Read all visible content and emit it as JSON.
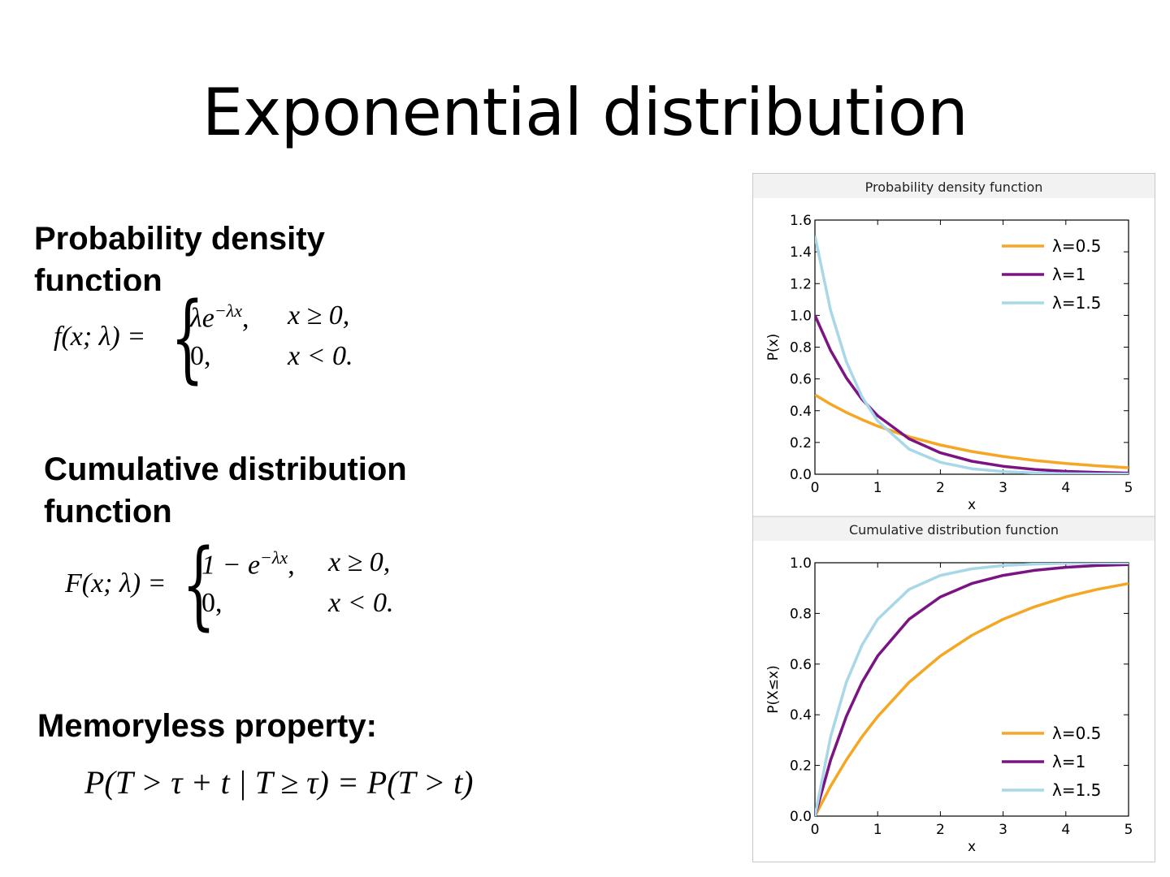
{
  "slide": {
    "title": "Exponential distribution",
    "pdf_heading": "Probability density function",
    "pdf_formula": {
      "lhs": "f(x; λ) =",
      "case1_expr": "λe",
      "case1_sup": "−λx",
      "case1_comma": ",",
      "case1_cond": "x ≥ 0,",
      "case2_expr": "0,",
      "case2_cond": "x < 0."
    },
    "cdf_heading": "Cumulative distribution function",
    "cdf_formula": {
      "lhs": "F(x; λ) =",
      "case1_expr": "1 − e",
      "case1_sup": "−λx",
      "case1_comma": ",",
      "case1_cond": "x ≥ 0,",
      "case2_expr": "0,",
      "case2_cond": "x < 0."
    },
    "memory_heading": "Memoryless property:",
    "memory_formula": "P(T > τ + t | T ≥ τ) = P(T > t)"
  },
  "chart_data": [
    {
      "type": "line",
      "title": "Probability density function",
      "xlabel": "x",
      "ylabel": "P(x)",
      "xlim": [
        0,
        5
      ],
      "ylim": [
        0,
        1.6
      ],
      "xticks": [
        0,
        1,
        2,
        3,
        4,
        5
      ],
      "yticks": [
        "0.0",
        "0.2",
        "0.4",
        "0.6",
        "0.8",
        "1.0",
        "1.2",
        "1.4",
        "1.6"
      ],
      "legend_position": "top-right",
      "x": [
        0,
        0.25,
        0.5,
        0.75,
        1,
        1.5,
        2,
        2.5,
        3,
        3.5,
        4,
        4.5,
        5
      ],
      "series": [
        {
          "name": "λ=0.5",
          "color": "#f5a623",
          "values": [
            0.5,
            0.441,
            0.389,
            0.344,
            0.303,
            0.236,
            0.184,
            0.143,
            0.112,
            0.087,
            0.068,
            0.053,
            0.041
          ]
        },
        {
          "name": "λ=1",
          "color": "#7b1383",
          "values": [
            1.0,
            0.779,
            0.607,
            0.472,
            0.368,
            0.223,
            0.135,
            0.082,
            0.05,
            0.03,
            0.018,
            0.011,
            0.007
          ]
        },
        {
          "name": "λ=1.5",
          "color": "#a8d8e8",
          "values": [
            1.5,
            1.031,
            0.709,
            0.487,
            0.335,
            0.158,
            0.075,
            0.035,
            0.017,
            0.008,
            0.004,
            0.002,
            0.001
          ]
        }
      ]
    },
    {
      "type": "line",
      "title": "Cumulative distribution function",
      "xlabel": "x",
      "ylabel": "P(X≤x)",
      "xlim": [
        0,
        5
      ],
      "ylim": [
        0,
        1.0
      ],
      "xticks": [
        0,
        1,
        2,
        3,
        4,
        5
      ],
      "yticks": [
        "0.0",
        "0.2",
        "0.4",
        "0.6",
        "0.8",
        "1.0"
      ],
      "legend_position": "bottom-right",
      "x": [
        0,
        0.25,
        0.5,
        0.75,
        1,
        1.5,
        2,
        2.5,
        3,
        3.5,
        4,
        4.5,
        5
      ],
      "series": [
        {
          "name": "λ=0.5",
          "color": "#f5a623",
          "values": [
            0,
            0.118,
            0.221,
            0.313,
            0.393,
            0.528,
            0.632,
            0.713,
            0.777,
            0.826,
            0.865,
            0.895,
            0.918
          ]
        },
        {
          "name": "λ=1",
          "color": "#7b1383",
          "values": [
            0,
            0.221,
            0.393,
            0.528,
            0.632,
            0.777,
            0.865,
            0.918,
            0.95,
            0.97,
            0.982,
            0.989,
            0.993
          ]
        },
        {
          "name": "λ=1.5",
          "color": "#a8d8e8",
          "values": [
            0,
            0.313,
            0.528,
            0.675,
            0.777,
            0.895,
            0.95,
            0.976,
            0.989,
            0.995,
            0.998,
            0.999,
            0.999
          ]
        }
      ]
    }
  ]
}
